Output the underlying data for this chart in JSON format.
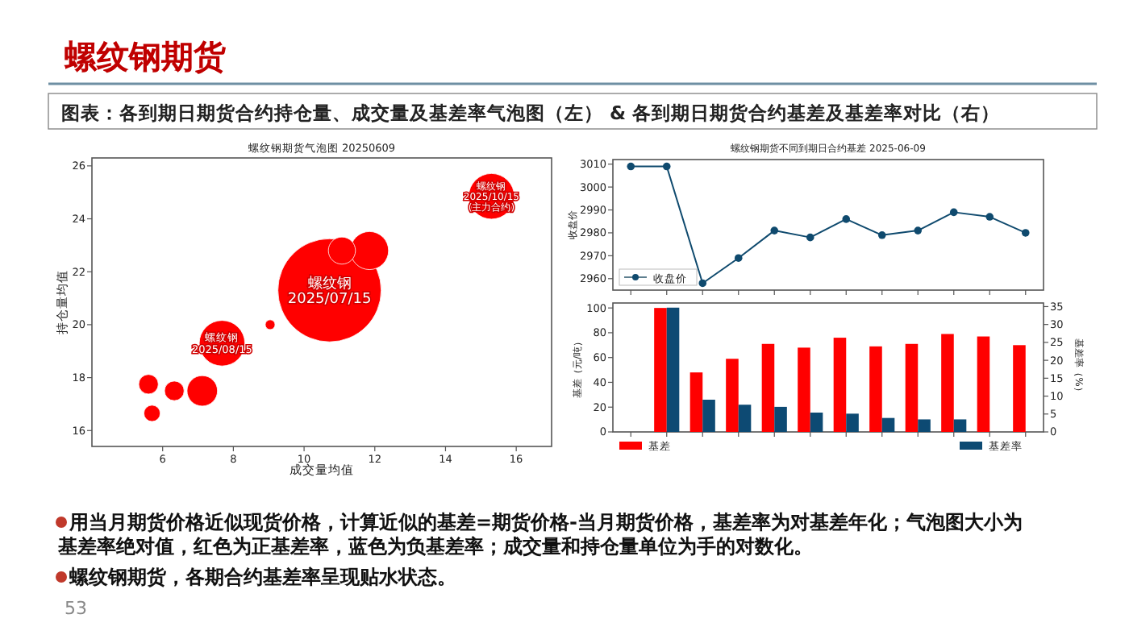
{
  "chart_data": [
    {
      "type": "other",
      "title": "螺纹钢期货",
      "subtitle": "图表：各到期日期货合约持仓量、成交量及基差率气泡图（左） & 各到期日期货合约基差及基差率对比（右）",
      "annotations": [
        "用当月期货价格近似现货价格，计算近似的基差=期货价格-当月期货价格，基差率为对基差年化；气泡图大小为基差率绝对值，红色为正基差率，蓝色为负基差率；成交量和持仓量单位为手的对数化。",
        "螺纹钢期货，各期合约基差率呈现贴水状态。",
        "53"
      ]
    },
    {
      "type": "bubble",
      "title": "螺纹钢期货气泡图 20250609",
      "xlabel": "成交量均值",
      "ylabel": "持仓量均值",
      "x": [
        10.72,
        15.3,
        11.85,
        11.07,
        7.68,
        9.04,
        7.12,
        6.33,
        5.6,
        5.7
      ],
      "values": [
        21.3,
        24.85,
        22.8,
        22.8,
        19.3,
        20.0,
        17.5,
        17.5,
        17.75,
        16.65
      ],
      "sizes": [
        1,
        0.195,
        0.136,
        0.069,
        0.195,
        0.009,
        0.087,
        0.036,
        0.036,
        0.025
      ],
      "colors": [
        "#ff0000",
        "#ff0000",
        "#ff0000",
        "#ff0000",
        "#ff0000",
        "#ff0000",
        "#ff0000",
        "#ff0000",
        "#ff0000",
        "#ff0000"
      ],
      "xlim": [
        4,
        17
      ],
      "ylim": [
        15.4,
        26.3
      ],
      "xticks": [
        6,
        8,
        10,
        12,
        14,
        16
      ],
      "yticks": [
        16,
        18,
        20,
        22,
        24,
        26
      ],
      "annotations": [
        {
          "text": "螺纹钢\n2025/07/15",
          "x": 10.72,
          "y": 21.3
        },
        {
          "text": "螺纹钢\n2025/10/15\n(主力合约)",
          "x": 15.3,
          "y": 24.85
        },
        {
          "text": "螺纹钢\n2025/08/15",
          "x": 7.68,
          "y": 19.3
        }
      ]
    },
    {
      "type": "line",
      "title": "螺纹钢期货不同到期日合约基差 2025-06-09",
      "ylabel": "收盘价",
      "categories": [
        null,
        null,
        null,
        null,
        null,
        null,
        null,
        null,
        null,
        null,
        null,
        null
      ],
      "series": [
        {
          "name": "收盘价",
          "color": "#0f4a6e",
          "values": [
            3009,
            3009,
            2958,
            2969,
            2981,
            2978,
            2986,
            2979,
            2981,
            2989,
            2987,
            2980
          ]
        }
      ],
      "ylim": [
        2955,
        3012
      ],
      "yticks": [
        2960,
        2970,
        2980,
        2990,
        3000,
        3010
      ],
      "marker": "circle",
      "legend": "bottom left",
      "tick_labels": "y"
    },
    {
      "type": "bar",
      "ylabel": "基差（元/吨）",
      "y2label": "基差率（%）",
      "categories": [
        null,
        null,
        null,
        null,
        null,
        null,
        null,
        null,
        null,
        null,
        null,
        null
      ],
      "series": [
        {
          "name": "基差",
          "color": "#ff0000",
          "values": [
            0,
            100,
            48,
            59,
            71,
            68,
            76,
            69,
            71,
            79,
            77,
            70
          ]
        },
        {
          "name": "基差率",
          "color": "#0d4a73",
          "axis": "y2",
          "values": [
            0,
            34.7,
            9.0,
            7.6,
            7.0,
            5.4,
            5.1,
            3.9,
            3.5,
            3.5,
            null,
            null
          ]
        }
      ],
      "ylim": [
        0,
        104
      ],
      "yticks": [
        0,
        20,
        40,
        60,
        80,
        100
      ],
      "y2lim": [
        0,
        36
      ],
      "y2ticks": [
        0,
        5,
        10,
        15,
        20,
        25,
        30,
        35
      ],
      "legend": "bottom"
    }
  ]
}
